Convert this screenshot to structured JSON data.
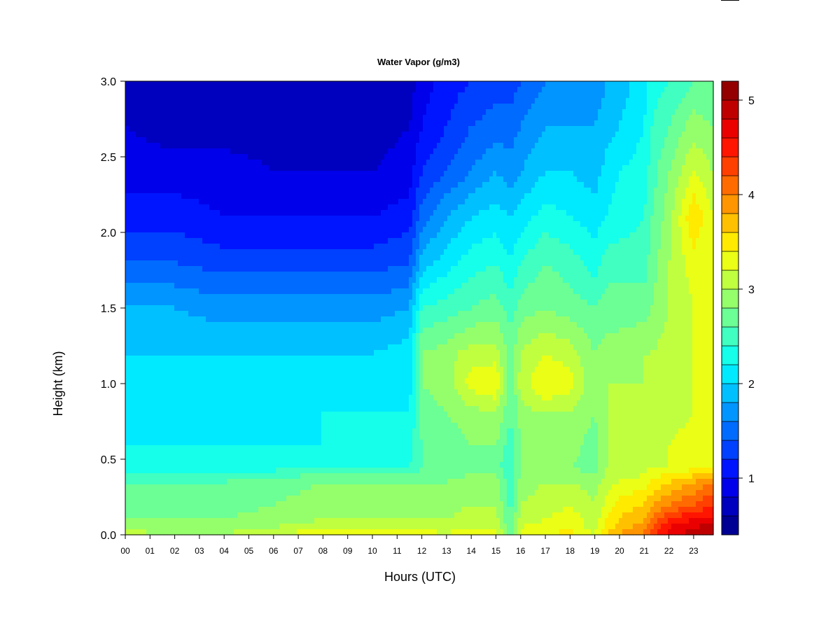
{
  "chart_data": {
    "type": "heatmap",
    "title": "Water Vapor (g/m3)",
    "xlabel": "Hours (UTC)",
    "ylabel": "Height (km)",
    "x_ticks": [
      "00",
      "01",
      "02",
      "03",
      "04",
      "05",
      "06",
      "07",
      "08",
      "09",
      "10",
      "11",
      "12",
      "13",
      "14",
      "15",
      "16",
      "17",
      "18",
      "19",
      "20",
      "21",
      "22",
      "23"
    ],
    "y_ticks": [
      "0.0",
      "0.5",
      "1.0",
      "1.5",
      "2.0",
      "2.5",
      "3.0"
    ],
    "xlim": [
      0,
      23.8
    ],
    "ylim": [
      0,
      3.0
    ],
    "colorbar": {
      "ticks": [
        "1",
        "2",
        "3",
        "4",
        "5"
      ],
      "range": [
        0.4,
        5.2
      ],
      "levels": 24
    },
    "colormap": [
      "#00007f",
      "#0000ff",
      "#0080ff",
      "#00ffff",
      "#80ff80",
      "#ffff00",
      "#ff8000",
      "#ff0000",
      "#7f0000"
    ],
    "heights": [
      0.0,
      0.05,
      0.1,
      0.2,
      0.35,
      0.45,
      0.6,
      0.8,
      1.0,
      1.2,
      1.5,
      1.8,
      2.1,
      2.4,
      2.7,
      3.0
    ],
    "hours": [
      0,
      2,
      4,
      6,
      8,
      10,
      11.5,
      12,
      13,
      14,
      15,
      15.6,
      16,
      17,
      18,
      19,
      19.5,
      20,
      21,
      21.3,
      22,
      23,
      23.8
    ],
    "values": [
      [
        3.1,
        3.0,
        3.0,
        3.2,
        3.4,
        3.4,
        3.3,
        3.3,
        3.2,
        3.4,
        3.3,
        2.6,
        3.3,
        3.4,
        3.5,
        3.2,
        3.6,
        3.8,
        4.0,
        4.3,
        4.7,
        4.9,
        5.0
      ],
      [
        2.9,
        2.9,
        2.9,
        3.0,
        3.1,
        3.1,
        3.1,
        3.2,
        3.1,
        3.2,
        3.2,
        2.6,
        3.2,
        3.3,
        3.3,
        3.1,
        3.5,
        3.7,
        3.9,
        4.2,
        4.6,
        4.8,
        4.9
      ],
      [
        2.8,
        2.8,
        2.8,
        2.9,
        3.0,
        3.0,
        3.0,
        3.0,
        3.0,
        3.1,
        3.1,
        2.6,
        3.1,
        3.2,
        3.3,
        3.1,
        3.4,
        3.6,
        3.8,
        4.0,
        4.4,
        4.6,
        4.7
      ],
      [
        2.7,
        2.7,
        2.7,
        2.8,
        2.9,
        2.9,
        2.9,
        2.9,
        2.9,
        3.0,
        3.0,
        2.5,
        3.0,
        3.1,
        3.2,
        3.0,
        3.3,
        3.5,
        3.6,
        3.8,
        4.0,
        4.2,
        4.4
      ],
      [
        2.6,
        2.6,
        2.6,
        2.7,
        2.8,
        2.8,
        2.8,
        2.8,
        2.8,
        2.9,
        2.9,
        2.5,
        2.9,
        3.0,
        3.0,
        2.9,
        3.1,
        3.2,
        3.3,
        3.4,
        3.6,
        3.8,
        4.0
      ],
      [
        2.3,
        2.3,
        2.3,
        2.3,
        2.4,
        2.4,
        2.4,
        2.6,
        2.6,
        2.7,
        2.7,
        2.4,
        2.8,
        2.8,
        2.8,
        2.7,
        3.0,
        3.0,
        3.1,
        3.2,
        3.2,
        3.3,
        3.4
      ],
      [
        2.2,
        2.2,
        2.2,
        2.2,
        2.2,
        2.3,
        2.3,
        2.6,
        2.7,
        2.8,
        2.8,
        2.5,
        2.8,
        2.9,
        2.9,
        2.7,
        3.0,
        3.0,
        3.1,
        3.1,
        3.2,
        3.3,
        3.3
      ],
      [
        2.1,
        2.1,
        2.1,
        2.1,
        2.2,
        2.2,
        2.2,
        2.7,
        2.8,
        2.9,
        3.0,
        2.6,
        2.9,
        3.0,
        3.0,
        2.8,
        3.0,
        3.0,
        3.0,
        3.1,
        3.1,
        3.2,
        3.3
      ],
      [
        2.1,
        2.1,
        2.0,
        2.0,
        2.1,
        2.1,
        2.1,
        2.8,
        2.9,
        3.3,
        3.4,
        2.6,
        3.1,
        3.4,
        3.3,
        2.8,
        3.0,
        3.0,
        3.0,
        3.1,
        3.1,
        3.2,
        3.3
      ],
      [
        2.0,
        2.0,
        2.0,
        2.0,
        2.0,
        2.0,
        2.1,
        2.8,
        2.9,
        3.1,
        3.1,
        2.7,
        3.0,
        3.2,
        3.1,
        2.8,
        2.9,
        2.9,
        3.0,
        3.0,
        3.1,
        3.2,
        3.2
      ],
      [
        1.8,
        1.8,
        1.7,
        1.7,
        1.7,
        1.7,
        1.8,
        2.4,
        2.5,
        2.6,
        2.7,
        2.5,
        2.7,
        2.8,
        2.7,
        2.6,
        2.7,
        2.7,
        2.7,
        2.8,
        3.0,
        3.2,
        3.2
      ],
      [
        1.4,
        1.4,
        1.3,
        1.3,
        1.3,
        1.3,
        1.4,
        1.9,
        2.1,
        2.3,
        2.4,
        2.2,
        2.4,
        2.6,
        2.5,
        2.3,
        2.5,
        2.5,
        2.5,
        2.7,
        3.0,
        3.3,
        3.2
      ],
      [
        1.1,
        1.1,
        1.0,
        1.0,
        1.0,
        1.0,
        1.1,
        1.5,
        1.8,
        2.0,
        2.1,
        2.0,
        2.1,
        2.3,
        2.2,
        2.1,
        2.2,
        2.3,
        2.4,
        2.6,
        2.9,
        3.6,
        3.2
      ],
      [
        0.9,
        0.9,
        0.9,
        0.8,
        0.8,
        0.8,
        0.9,
        1.2,
        1.4,
        1.6,
        1.8,
        1.7,
        1.8,
        2.0,
        2.0,
        1.9,
        2.1,
        2.2,
        2.3,
        2.5,
        2.8,
        3.2,
        3.0
      ],
      [
        0.8,
        0.7,
        0.7,
        0.7,
        0.6,
        0.7,
        0.8,
        1.0,
        1.2,
        1.4,
        1.5,
        1.5,
        1.6,
        1.8,
        1.8,
        1.8,
        1.9,
        2.0,
        2.2,
        2.4,
        2.6,
        2.9,
        2.8
      ],
      [
        0.7,
        0.7,
        0.6,
        0.6,
        0.6,
        0.6,
        0.7,
        0.9,
        1.1,
        1.2,
        1.3,
        1.3,
        1.4,
        1.6,
        1.6,
        1.7,
        1.8,
        1.9,
        2.1,
        2.3,
        2.4,
        2.6,
        2.6
      ]
    ]
  }
}
